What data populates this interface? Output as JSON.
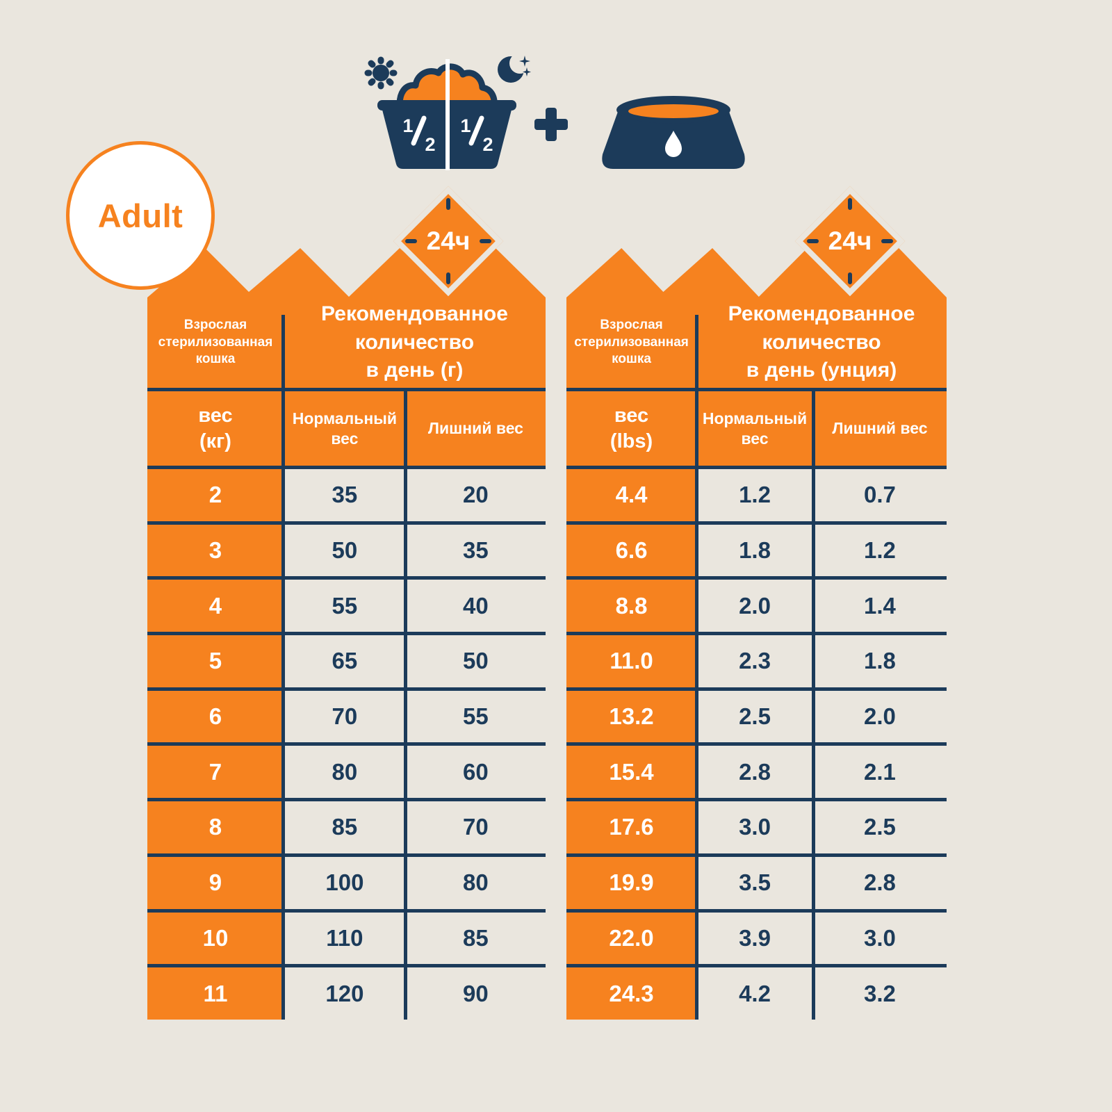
{
  "page": {
    "background": "#EAE6DE",
    "accent_orange": "#F6821F",
    "navy": "#1C3B5A",
    "white": "#FFFFFF"
  },
  "badge": {
    "label": "Adult"
  },
  "badges": {
    "duration_label": "24ч"
  },
  "food_bowl": {
    "morning_fraction": {
      "num": "1",
      "den": "2"
    },
    "evening_fraction": {
      "num": "1",
      "den": "2"
    }
  },
  "icon_names": [
    "sun-icon",
    "moon-icon",
    "food-bowl-icon",
    "plus-icon",
    "water-bowl-icon",
    "24h-diamond-badge"
  ],
  "chart_data": [
    {
      "type": "table",
      "row_header": "Взрослая\nстерилизованная\nкошка",
      "title": "Рекомендованное\nколичество\nв день (г)",
      "weight_header": "вес\n(кг)",
      "columns": [
        "Нормальный\nвес",
        "Лишний вес"
      ],
      "rows": [
        [
          "2",
          "35",
          "20"
        ],
        [
          "3",
          "50",
          "35"
        ],
        [
          "4",
          "55",
          "40"
        ],
        [
          "5",
          "65",
          "50"
        ],
        [
          "6",
          "70",
          "55"
        ],
        [
          "7",
          "80",
          "60"
        ],
        [
          "8",
          "85",
          "70"
        ],
        [
          "9",
          "100",
          "80"
        ],
        [
          "10",
          "110",
          "85"
        ],
        [
          "11",
          "120",
          "90"
        ]
      ]
    },
    {
      "type": "table",
      "row_header": "Взрослая\nстерилизованная\nкошка",
      "title": "Рекомендованное\nколичество\nв день (унция)",
      "weight_header": "вес\n(lbs)",
      "columns": [
        "Нормальный\nвес",
        "Лишний вес"
      ],
      "rows": [
        [
          "4.4",
          "1.2",
          "0.7"
        ],
        [
          "6.6",
          "1.8",
          "1.2"
        ],
        [
          "8.8",
          "2.0",
          "1.4"
        ],
        [
          "11.0",
          "2.3",
          "1.8"
        ],
        [
          "13.2",
          "2.5",
          "2.0"
        ],
        [
          "15.4",
          "2.8",
          "2.1"
        ],
        [
          "17.6",
          "3.0",
          "2.5"
        ],
        [
          "19.9",
          "3.5",
          "2.8"
        ],
        [
          "22.0",
          "3.9",
          "3.0"
        ],
        [
          "24.3",
          "4.2",
          "3.2"
        ]
      ]
    }
  ]
}
